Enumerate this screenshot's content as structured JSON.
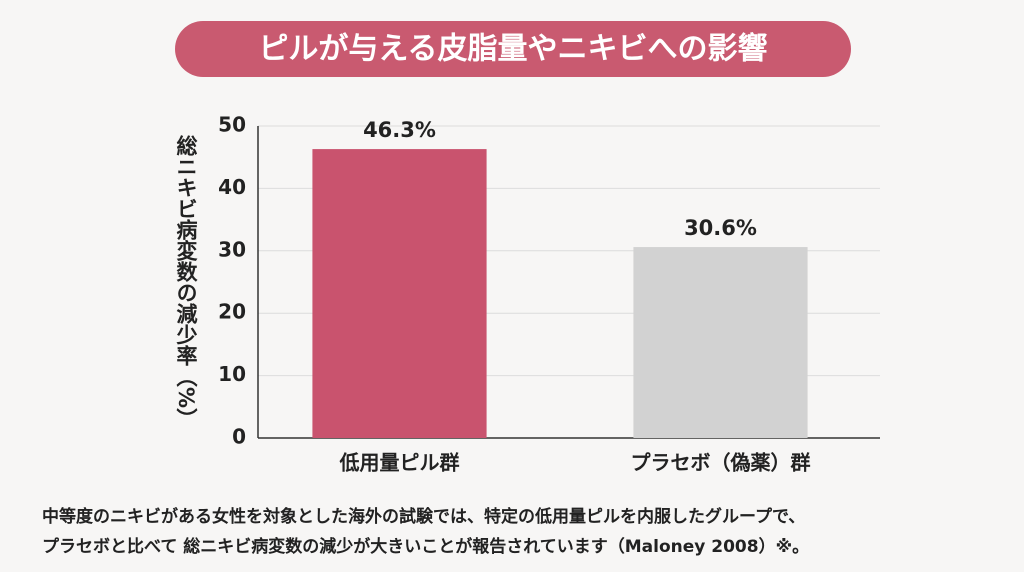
{
  "chart_data": {
    "type": "bar",
    "title": "ピルが与える皮脂量やニキビへの影響",
    "ylabel": "総ニキビ病変数の減少率（%）",
    "categories": [
      "低用量ピル群",
      "プラセボ（偽薬）群"
    ],
    "values": [
      46.3,
      30.6
    ],
    "value_labels": [
      "46.3%",
      "30.6%"
    ],
    "colors": [
      "#c9536e",
      "#d2d2d2"
    ],
    "ylim": [
      0,
      50
    ],
    "yticks": [
      0,
      10,
      20,
      30,
      40,
      50
    ],
    "grid": true,
    "notes": [
      "中等度のニキビがある女性を対象とした海外の試験では、特定の低用量ピルを内服したグループで、",
      "プラセボと比べて 総ニキビ病変数の減少が大きいことが報告されています（Maloney 2008）※。"
    ]
  }
}
